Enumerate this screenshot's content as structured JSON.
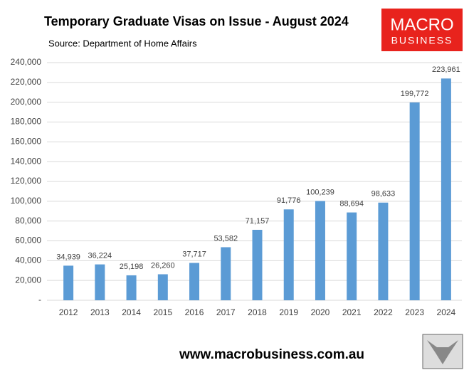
{
  "chart_data": {
    "type": "bar",
    "title": "Temporary Graduate Visas on Issue - August 2024",
    "subtitle": "Source: Department of Home Affairs",
    "logo_text": "MACRO",
    "logo_subtext": "BUSINESS",
    "footer": "www.macrobusiness.com.au",
    "categories": [
      "2012",
      "2013",
      "2014",
      "2015",
      "2016",
      "2017",
      "2018",
      "2019",
      "2020",
      "2021",
      "2022",
      "2023",
      "2024"
    ],
    "values": [
      34939,
      36224,
      25198,
      26260,
      37717,
      53582,
      71157,
      91776,
      100239,
      88694,
      98633,
      199772,
      223961
    ],
    "value_labels": [
      "34,939",
      "36,224",
      "25,198",
      "26,260",
      "37,717",
      "53,582",
      "71,157",
      "91,776",
      "100,239",
      "88,694",
      "98,633",
      "199,772",
      "223,961"
    ],
    "color": "#5b9bd5",
    "ylim": [
      0,
      240000
    ],
    "yticks": [
      {
        "value": 0,
        "label": "-"
      },
      {
        "value": 20000,
        "label": "20,000"
      },
      {
        "value": 40000,
        "label": "40,000"
      },
      {
        "value": 60000,
        "label": "60,000"
      },
      {
        "value": 80000,
        "label": "80,000"
      },
      {
        "value": 100000,
        "label": "100,000"
      },
      {
        "value": 120000,
        "label": "120,000"
      },
      {
        "value": 140000,
        "label": "140,000"
      },
      {
        "value": 160000,
        "label": "160,000"
      },
      {
        "value": 180000,
        "label": "180,000"
      },
      {
        "value": 200000,
        "label": "200,000"
      },
      {
        "value": 220000,
        "label": "220,000"
      },
      {
        "value": 240000,
        "label": "240,000"
      }
    ],
    "grid": true
  }
}
